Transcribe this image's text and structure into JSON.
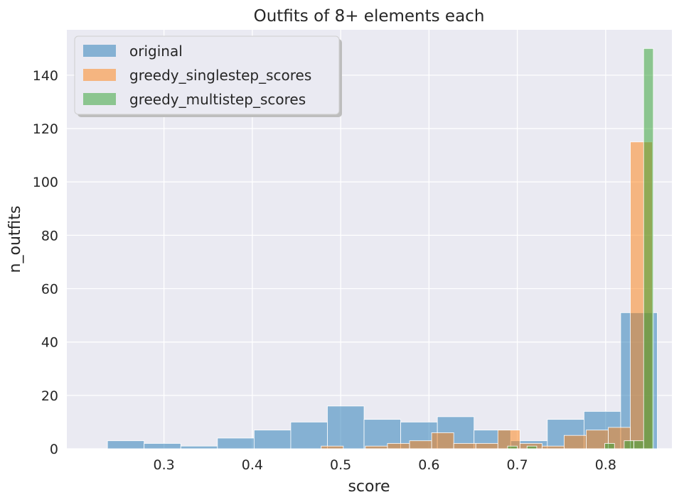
{
  "chart_data": {
    "type": "bar",
    "title": "Outfits of 8+ elements each",
    "xlabel": "score",
    "ylabel": "n_outfits",
    "xlim": [
      0.19,
      0.875
    ],
    "ylim": [
      0,
      157
    ],
    "xticks": [
      "0.3",
      "0.4",
      "0.5",
      "0.6",
      "0.7",
      "0.8"
    ],
    "yticks": [
      "0",
      "20",
      "40",
      "60",
      "80",
      "100",
      "120",
      "140"
    ],
    "grid": true,
    "legend_position": "top-left",
    "colors": {
      "background": "#eaeaf2",
      "grid": "#ffffff",
      "original": "#1f77b4",
      "greedy_singlestep_scores": "#ff7f0e",
      "greedy_multistep_scores": "#2ca02c"
    },
    "series": [
      {
        "name": "original",
        "bins": [
          {
            "x0": 0.236,
            "x1": 0.2775,
            "value": 3
          },
          {
            "x0": 0.2775,
            "x1": 0.319,
            "value": 2
          },
          {
            "x0": 0.319,
            "x1": 0.3605,
            "value": 1
          },
          {
            "x0": 0.3605,
            "x1": 0.402,
            "value": 4
          },
          {
            "x0": 0.402,
            "x1": 0.4435,
            "value": 7
          },
          {
            "x0": 0.4435,
            "x1": 0.485,
            "value": 10
          },
          {
            "x0": 0.485,
            "x1": 0.5265,
            "value": 16
          },
          {
            "x0": 0.5265,
            "x1": 0.568,
            "value": 11
          },
          {
            "x0": 0.568,
            "x1": 0.6095,
            "value": 10
          },
          {
            "x0": 0.6095,
            "x1": 0.651,
            "value": 12
          },
          {
            "x0": 0.651,
            "x1": 0.6925,
            "value": 7
          },
          {
            "x0": 0.6925,
            "x1": 0.734,
            "value": 3
          },
          {
            "x0": 0.734,
            "x1": 0.7755,
            "value": 11
          },
          {
            "x0": 0.7755,
            "x1": 0.817,
            "value": 14
          },
          {
            "x0": 0.817,
            "x1": 0.8585,
            "value": 51
          }
        ]
      },
      {
        "name": "greedy_singlestep_scores",
        "bins": [
          {
            "x0": 0.478,
            "x1": 0.503,
            "value": 1
          },
          {
            "x0": 0.503,
            "x1": 0.528,
            "value": 0
          },
          {
            "x0": 0.528,
            "x1": 0.553,
            "value": 1
          },
          {
            "x0": 0.553,
            "x1": 0.578,
            "value": 2
          },
          {
            "x0": 0.578,
            "x1": 0.603,
            "value": 3
          },
          {
            "x0": 0.603,
            "x1": 0.628,
            "value": 6
          },
          {
            "x0": 0.628,
            "x1": 0.653,
            "value": 2
          },
          {
            "x0": 0.653,
            "x1": 0.678,
            "value": 2
          },
          {
            "x0": 0.678,
            "x1": 0.703,
            "value": 7
          },
          {
            "x0": 0.703,
            "x1": 0.728,
            "value": 2
          },
          {
            "x0": 0.728,
            "x1": 0.753,
            "value": 1
          },
          {
            "x0": 0.753,
            "x1": 0.778,
            "value": 5
          },
          {
            "x0": 0.778,
            "x1": 0.803,
            "value": 7
          },
          {
            "x0": 0.803,
            "x1": 0.828,
            "value": 8
          },
          {
            "x0": 0.828,
            "x1": 0.853,
            "value": 115
          }
        ]
      },
      {
        "name": "greedy_multistep_scores",
        "bins": [
          {
            "x0": 0.689,
            "x1": 0.7,
            "value": 1
          },
          {
            "x0": 0.7,
            "x1": 0.711,
            "value": 0
          },
          {
            "x0": 0.711,
            "x1": 0.722,
            "value": 1
          },
          {
            "x0": 0.722,
            "x1": 0.733,
            "value": 0
          },
          {
            "x0": 0.733,
            "x1": 0.744,
            "value": 0
          },
          {
            "x0": 0.744,
            "x1": 0.755,
            "value": 0
          },
          {
            "x0": 0.755,
            "x1": 0.766,
            "value": 0
          },
          {
            "x0": 0.766,
            "x1": 0.777,
            "value": 0
          },
          {
            "x0": 0.777,
            "x1": 0.788,
            "value": 0
          },
          {
            "x0": 0.788,
            "x1": 0.799,
            "value": 0
          },
          {
            "x0": 0.799,
            "x1": 0.81,
            "value": 2
          },
          {
            "x0": 0.81,
            "x1": 0.821,
            "value": 0
          },
          {
            "x0": 0.821,
            "x1": 0.832,
            "value": 3
          },
          {
            "x0": 0.832,
            "x1": 0.843,
            "value": 3
          },
          {
            "x0": 0.843,
            "x1": 0.854,
            "value": 150
          }
        ]
      }
    ]
  }
}
